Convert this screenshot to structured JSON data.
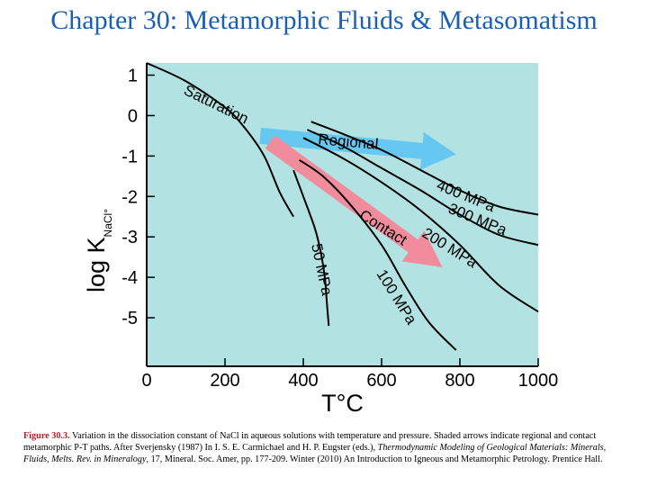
{
  "slide_title": "Chapter 30: Metamorphic Fluids & Metasomatism",
  "chart_data": {
    "type": "line",
    "xlabel": "T°C",
    "ylabel": "log K",
    "ylabel_sub": "NaCl°",
    "xlim": [
      0,
      1000
    ],
    "ylim": [
      -6.2,
      1.3
    ],
    "xticks": [
      "0",
      "200",
      "400",
      "600",
      "800",
      "1000"
    ],
    "yticks": [
      "1",
      "0",
      "-1",
      "-2",
      "-3",
      "-4",
      "-5"
    ],
    "background": "#b2e2e2",
    "series": [
      {
        "name": "Saturation",
        "x": [
          0,
          100,
          200,
          250,
          300,
          340,
          375
        ],
        "y": [
          1.3,
          0.85,
          0.2,
          -0.3,
          -1.0,
          -1.9,
          -2.5
        ]
      },
      {
        "name": "50 MPa",
        "x": [
          375,
          400,
          430,
          445,
          455,
          460,
          465
        ],
        "y": [
          -1.35,
          -2.0,
          -2.8,
          -3.4,
          -4.0,
          -4.6,
          -5.2
        ]
      },
      {
        "name": "100 MPa",
        "x": [
          390,
          450,
          520,
          600,
          660,
          720,
          790
        ],
        "y": [
          -1.1,
          -1.5,
          -2.2,
          -3.2,
          -4.2,
          -5.1,
          -5.8
        ]
      },
      {
        "name": "200 MPa",
        "x": [
          400,
          500,
          600,
          700,
          800,
          900,
          1000
        ],
        "y": [
          -0.55,
          -1.05,
          -1.65,
          -2.35,
          -3.2,
          -4.2,
          -4.85
        ]
      },
      {
        "name": "300 MPa",
        "x": [
          410,
          500,
          600,
          700,
          800,
          900,
          1000
        ],
        "y": [
          -0.35,
          -0.75,
          -1.3,
          -1.85,
          -2.45,
          -2.95,
          -3.2
        ]
      },
      {
        "name": "400 MPa",
        "x": [
          420,
          500,
          600,
          700,
          800,
          900,
          1000
        ],
        "y": [
          -0.15,
          -0.45,
          -0.85,
          -1.35,
          -1.85,
          -2.25,
          -2.45
        ]
      }
    ],
    "annotations": [
      {
        "text": "Regional",
        "color": "#66c8f0"
      },
      {
        "text": "Contact",
        "color": "#f08c9c"
      }
    ]
  },
  "caption": {
    "label": "Figure 30.3.",
    "text1": " Variation in the dissociation constant of NaCl in aqueous solutions with temperature and pressure. Shaded arrows indicate regional and contact metamorphic P-T paths. After Sverjensky (1987) In I. S. E. Carmichael and H. P. Eugster (eds.), ",
    "italic": "Thermodynamic Modeling of Geological Materials: Minerals, Fluids, Melts. Rev. in Mineralogy",
    "text2": ", 17, Mineral. Soc. Amer, pp. 177-209. Winter (2010) An Introduction to Igneous and Metamorphic Petrology. Prentice Hall."
  }
}
